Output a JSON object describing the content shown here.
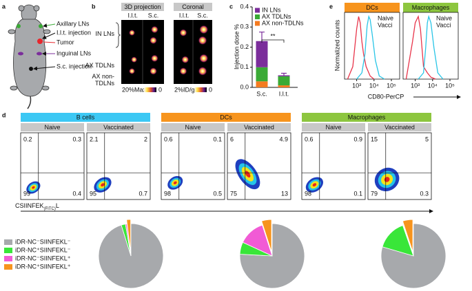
{
  "panel_a": {
    "letter": "a",
    "labels": [
      "Axillary LNs",
      "I.l.t. injection",
      "Tumor",
      "Inguinal LNs",
      "S.c. injection"
    ]
  },
  "panel_b": {
    "letter": "b",
    "groups": [
      {
        "title": "3D projection",
        "columns": [
          "I.l.t.",
          "S.c."
        ],
        "scale_max": "20%Max",
        "scale_min": "0"
      },
      {
        "title": "Coronal",
        "columns": [
          "I.l.t.",
          "S.c."
        ],
        "scale_max": "2%ID/g",
        "scale_min": "0"
      }
    ],
    "rows": [
      "IN LNs",
      "AX TDLNs",
      "AX non-TDLNs"
    ]
  },
  "chart_data": [
    {
      "type": "bar",
      "stacked": true,
      "letter": "c",
      "y_label": "Injection dose %",
      "categories": [
        "S.c.",
        "I.l.t."
      ],
      "series": [
        {
          "name": "AX non-TDLNs",
          "color": "#f47b20",
          "values": [
            0.03,
            0.01
          ]
        },
        {
          "name": "AX TDLNs",
          "color": "#3aaa35",
          "values": [
            0.07,
            0.045
          ]
        },
        {
          "name": "IN LNs",
          "color": "#7b2d9b",
          "values": [
            0.13,
            0.005
          ],
          "errors": [
            0.045,
            0.01
          ]
        }
      ],
      "ylim": [
        0,
        0.4
      ],
      "yticks": [
        {
          "value": 0,
          "label": "0.0"
        },
        {
          "value": 0.1,
          "label": "0.1"
        },
        {
          "value": 0.2,
          "label": "0.2"
        },
        {
          "value": 0.3,
          "label": "0.3"
        },
        {
          "value": 0.4,
          "label": "0.4"
        }
      ],
      "annotation": "**"
    },
    {
      "type": "line",
      "letter": "e",
      "y_label": "Normalized counts",
      "x_label": "CD80-PerCP",
      "x_log": true,
      "xlim": [
        200,
        300000
      ],
      "xticks": [
        {
          "value": 1000,
          "label": "10³"
        },
        {
          "value": 10000,
          "label": "10⁴"
        },
        {
          "value": 100000,
          "label": "10⁵"
        }
      ],
      "ylim": [
        0,
        100
      ],
      "panels": [
        {
          "title": "DCs",
          "header_color": "#f7941d",
          "series": [
            {
              "name": "Naive",
              "color": "#e8344a",
              "x": [
                300,
                600,
                1000,
                1300,
                1600,
                2000,
                2500,
                3500,
                6000,
                10000
              ],
              "values": [
                0,
                20,
                80,
                100,
                90,
                60,
                40,
                20,
                5,
                0
              ]
            },
            {
              "name": "Vacci",
              "color": "#29c5e6",
              "x": [
                1000,
                2000,
                3000,
                4000,
                5000,
                6000,
                8000,
                12000,
                20000,
                40000
              ],
              "values": [
                0,
                10,
                40,
                85,
                100,
                95,
                70,
                30,
                5,
                0
              ]
            }
          ]
        },
        {
          "title": "Macrophages",
          "header_color": "#8dc63f",
          "series": [
            {
              "name": "Naive",
              "color": "#e8344a",
              "x": [
                300,
                700,
                1000,
                1500,
                2000,
                3000,
                5000,
                8000,
                15000
              ],
              "values": [
                0,
                60,
                90,
                100,
                80,
                20,
                10,
                3,
                0
              ]
            },
            {
              "name": "Vacci",
              "color": "#29c5e6",
              "x": [
                1500,
                3000,
                4000,
                5000,
                6000,
                8000,
                12000,
                20000,
                40000
              ],
              "values": [
                0,
                10,
                50,
                90,
                100,
                90,
                50,
                10,
                0
              ]
            }
          ]
        }
      ]
    },
    {
      "type": "density",
      "letter": "d",
      "x_label": [
        "CSIINFEK",
        "(FITC)",
        "L"
      ],
      "groups": [
        {
          "title": "B cells",
          "color": "#3cc8f4",
          "plots": [
            {
              "title": "Naive",
              "title_color": "#111111",
              "quadrants": [
                0.2,
                0.3,
                99,
                0.4
              ]
            },
            {
              "title": "Vaccinated",
              "title_color": "#e8344a",
              "quadrants": [
                2.1,
                2,
                95,
                0.7
              ]
            }
          ]
        },
        {
          "title": "DCs",
          "color": "#f7941d",
          "plots": [
            {
              "title": "Naive",
              "title_color": "#111111",
              "quadrants": [
                0.6,
                0.1,
                98,
                0.5
              ]
            },
            {
              "title": "Vaccinated",
              "title_color": "#e8344a",
              "quadrants": [
                6,
                4.9,
                75,
                13
              ]
            }
          ]
        },
        {
          "title": "Macrophages",
          "color": "#8dc63f",
          "plots": [
            {
              "title": "Naive",
              "title_color": "#111111",
              "quadrants": [
                0.6,
                0.9,
                98,
                0.1
              ]
            },
            {
              "title": "Vaccinated",
              "title_color": "#e8344a",
              "quadrants": [
                15,
                5,
                79,
                0.3
              ]
            }
          ]
        }
      ]
    },
    {
      "type": "pie",
      "labels": [
        "iDR-NC⁻SIINFEKL⁻",
        "iDR-NC⁺SIINFEKL⁻",
        "iDR-NC⁻SIINFEKL⁺",
        "iDR-NC⁺SIINFEKL⁺"
      ],
      "colors": [
        "#a7a9ac",
        "#39e639",
        "#f15bd5",
        "#f7941d"
      ],
      "explode": [
        false,
        false,
        false,
        true
      ],
      "pies": [
        [
          95,
          2.1,
          0.7,
          2
        ],
        [
          75,
          6,
          13,
          4.9
        ],
        [
          79,
          15,
          0.3,
          5
        ]
      ]
    }
  ]
}
